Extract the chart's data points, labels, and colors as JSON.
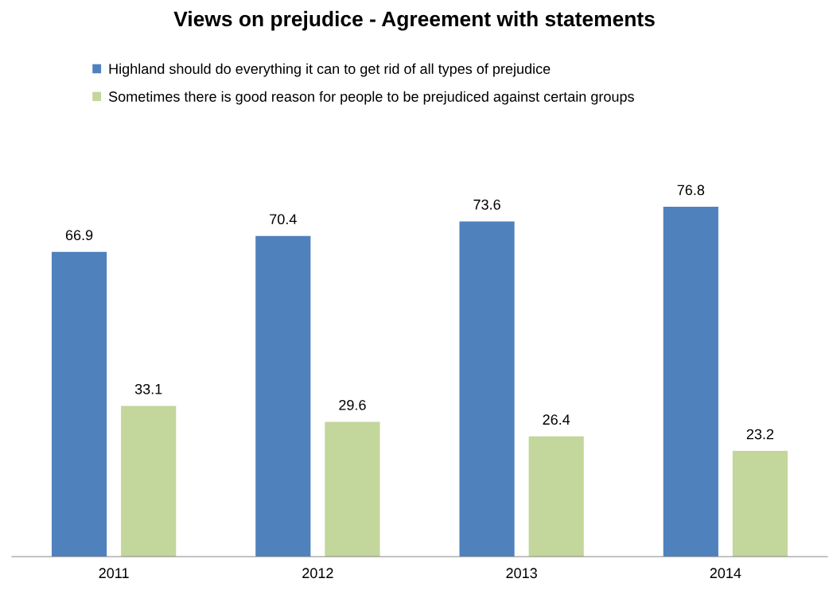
{
  "chart_data": {
    "type": "bar",
    "title": "Views on prejudice - Agreement with statements",
    "categories": [
      "2011",
      "2012",
      "2013",
      "2014"
    ],
    "series": [
      {
        "name": "Highland should do everything it can to get rid of all types of prejudice",
        "color": "#4f81bd",
        "values": [
          66.9,
          70.4,
          73.6,
          76.8
        ]
      },
      {
        "name": "Sometimes there is good reason for people to be prejudiced against certain groups",
        "color": "#c3d69b",
        "values": [
          33.1,
          29.6,
          26.4,
          23.2
        ]
      }
    ],
    "data_labels": true,
    "grid": false,
    "legend": "top",
    "tick_labels": "x"
  }
}
